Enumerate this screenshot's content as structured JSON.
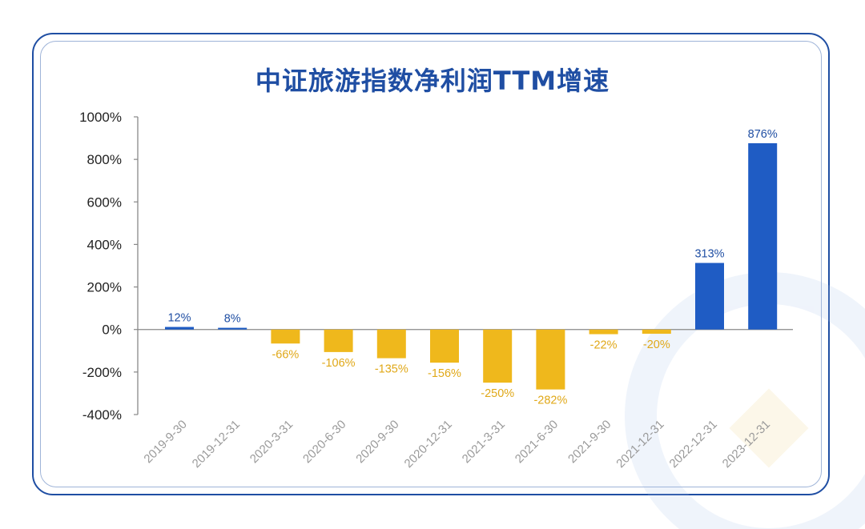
{
  "chart_data": {
    "type": "bar",
    "title": "中证旅游指数净利润TTM增速",
    "xlabel": "",
    "ylabel": "",
    "categories": [
      "2019-9-30",
      "2019-12-31",
      "2020-3-31",
      "2020-6-30",
      "2020-9-30",
      "2020-12-31",
      "2021-3-31",
      "2021-6-30",
      "2021-9-30",
      "2021-12-31",
      "2022-12-31",
      "2023-12-31"
    ],
    "values": [
      12,
      8,
      -66,
      -106,
      -135,
      -156,
      -250,
      -282,
      -22,
      -20,
      313,
      876
    ],
    "data_labels": [
      "12%",
      "8%",
      "-66%",
      "-106%",
      "-135%",
      "-156%",
      "-250%",
      "-282%",
      "-22%",
      "-20%",
      "313%",
      "876%"
    ],
    "ylim": [
      -400,
      1000
    ],
    "yticks": [
      1000,
      800,
      600,
      400,
      200,
      0,
      -200,
      -400
    ],
    "ytick_labels": [
      "1000%",
      "800%",
      "600%",
      "400%",
      "200%",
      "0%",
      "-200%",
      "-400%"
    ],
    "grid": false,
    "colors": {
      "positive": "#1f5cc4",
      "negative": "#efb81c",
      "positive_label": "#1f4ea3",
      "negative_label": "#e0a818",
      "axis": "#888888",
      "tick_text": "#222222",
      "category_text": "#9a9a9a"
    }
  }
}
